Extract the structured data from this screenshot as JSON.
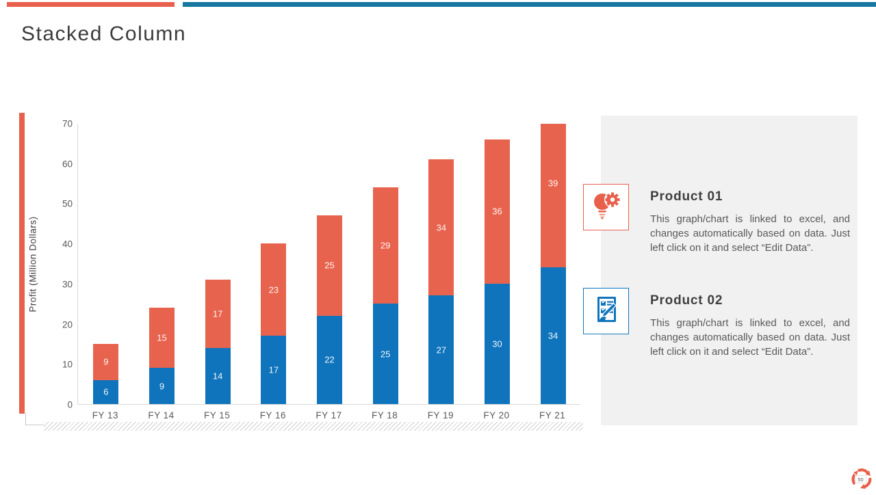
{
  "slide": {
    "title": "Stacked Column",
    "page_number": "50"
  },
  "colors": {
    "accent_red": "#E8604C",
    "accent_blue_strip": "#16779F",
    "bar_blue": "#0F74BC",
    "bar_red": "#E8634E",
    "panel_gray": "#f1f1f1",
    "axis_gray": "#d9d9d9",
    "text_gray": "#595959"
  },
  "chart_data": {
    "type": "bar",
    "stacked": true,
    "title": "",
    "xlabel": "",
    "ylabel": "Profit  (Million  Dollars)",
    "ylim": [
      0,
      70
    ],
    "yticks": [
      0,
      10,
      20,
      30,
      40,
      50,
      60,
      70
    ],
    "grid": false,
    "legend_position": "none",
    "categories": [
      "FY 13",
      "FY 14",
      "FY 15",
      "FY 16",
      "FY 17",
      "FY 18",
      "FY 19",
      "FY 20",
      "FY 21"
    ],
    "series": [
      {
        "name": "Product 02",
        "color": "#0F74BC",
        "values": [
          6,
          9,
          14,
          17,
          22,
          25,
          27,
          30,
          34
        ]
      },
      {
        "name": "Product 01",
        "color": "#E8634E",
        "values": [
          9,
          15,
          17,
          23,
          25,
          29,
          34,
          36,
          39
        ]
      }
    ]
  },
  "products": [
    {
      "title": "Product 01",
      "icon": "bulb-gear-icon",
      "accent": "#E8604C",
      "body": "This graph/chart is linked to excel, and changes automatically based on data. Just left click on it and select “Edit Data”."
    },
    {
      "title": "Product 02",
      "icon": "clipboard-pen-icon",
      "accent": "#0F74BC",
      "body": "This graph/chart is linked to excel, and changes automatically based on data. Just left click on it and select “Edit Data”."
    }
  ]
}
